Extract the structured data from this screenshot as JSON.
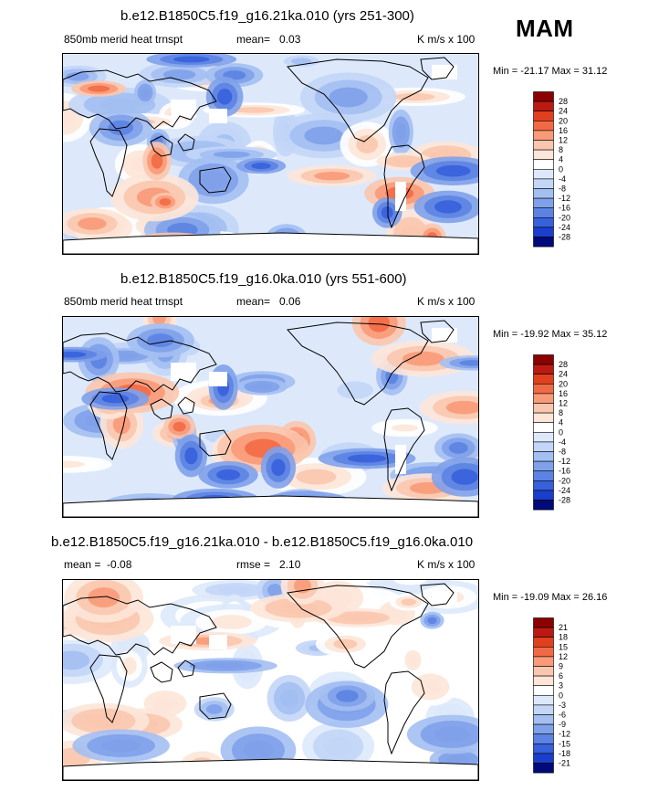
{
  "season": "MAM",
  "colors": {
    "p5": "#8b0000",
    "p4": "#bb1a12",
    "p3": "#e0401e",
    "p2": "#f26a45",
    "p1": "#f99a78",
    "p0": "#fbc6ae",
    "pz": "#fde5d8",
    "nz": "#dde9fb",
    "n0": "#c3d6f7",
    "n1": "#a3bff2",
    "n2": "#7fa1ea",
    "n3": "#5c83e3",
    "n4": "#3760db",
    "n5": "#1a3fcc",
    "n6": "#0b1fa8",
    "n7": "#000a78",
    "ocean_bg": "#dfe9fa",
    "white": "#ffffff",
    "coast": "#000000"
  },
  "panels": [
    {
      "title": "b.e12.B1850C5.f19_g16.21ka.010 (yrs 251-300)",
      "left_label": "850mb merid heat trnspt",
      "stat_label": "mean=",
      "stat_value": "0.03",
      "units": "K m/s x 100",
      "min_label": "Min =",
      "min_value": "-21.17",
      "max_label": "Max =",
      "max_value": "31.12",
      "colorbar_ticks": [
        "28",
        "24",
        "20",
        "16",
        "12",
        "8",
        "4",
        "0",
        "-4",
        "-8",
        "-12",
        "-16",
        "-20",
        "-24",
        "-28"
      ]
    },
    {
      "title": "b.e12.B1850C5.f19_g16.0ka.010 (yrs 551-600)",
      "left_label": "850mb merid heat trnspt",
      "stat_label": "mean=",
      "stat_value": "0.06",
      "units": "K m/s x 100",
      "min_label": "Min =",
      "min_value": "-19.92",
      "max_label": "Max =",
      "max_value": "35.12",
      "colorbar_ticks": [
        "28",
        "24",
        "20",
        "16",
        "12",
        "8",
        "4",
        "0",
        "-4",
        "-8",
        "-12",
        "-16",
        "-20",
        "-24",
        "-28"
      ]
    },
    {
      "title": "b.e12.B1850C5.f19_g16.21ka.010 - b.e12.B1850C5.f19_g16.0ka.010",
      "left_label": "mean =",
      "left_value": "-0.08",
      "stat_label": "rmse =",
      "stat_value": "2.10",
      "units": "K m/s x 100",
      "min_label": "Min =",
      "min_value": "-19.09",
      "max_label": "Max =",
      "max_value": "26.16",
      "colorbar_ticks": [
        "21",
        "18",
        "15",
        "12",
        "9",
        "6",
        "3",
        "0",
        "-3",
        "-6",
        "-9",
        "-12",
        "-15",
        "-18",
        "-21"
      ]
    }
  ]
}
